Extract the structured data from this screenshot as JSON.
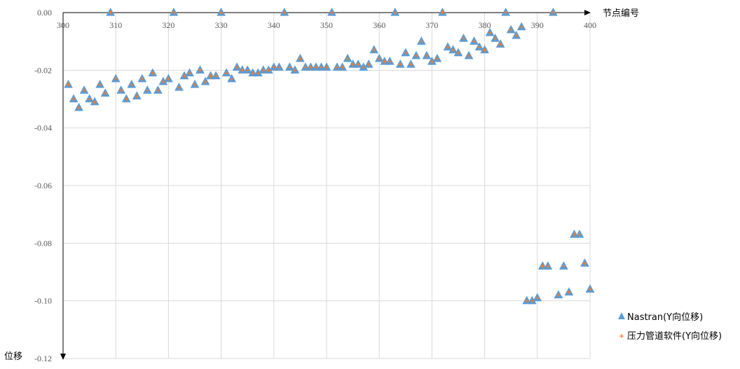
{
  "chart_data": {
    "type": "scatter",
    "xlabel": "节点编号",
    "ylabel": "位移",
    "xlim": [
      300,
      400
    ],
    "ylim": [
      -0.12,
      0
    ],
    "xticks": [
      300,
      310,
      320,
      330,
      340,
      350,
      360,
      370,
      380,
      390,
      400
    ],
    "yticks": [
      0,
      -0.02,
      -0.04,
      -0.06,
      -0.08,
      -0.1,
      -0.12
    ],
    "ytick_labels": [
      "0.00",
      "-0.02",
      "-0.04",
      "-0.06",
      "-0.08",
      "-0.10",
      "-0.12"
    ],
    "grid": true,
    "legend_position": "bottom-right",
    "series": [
      {
        "name": "Nastran(Y向位移)",
        "marker": "triangle",
        "color": "#5b9bd5",
        "points": [
          [
            301,
            -0.025
          ],
          [
            302,
            -0.03
          ],
          [
            303,
            -0.033
          ],
          [
            304,
            -0.027
          ],
          [
            305,
            -0.03
          ],
          [
            306,
            -0.031
          ],
          [
            307,
            -0.025
          ],
          [
            308,
            -0.028
          ],
          [
            309,
            0
          ],
          [
            310,
            -0.023
          ],
          [
            311,
            -0.027
          ],
          [
            312,
            -0.03
          ],
          [
            313,
            -0.025
          ],
          [
            314,
            -0.029
          ],
          [
            315,
            -0.023
          ],
          [
            316,
            -0.027
          ],
          [
            317,
            -0.021
          ],
          [
            318,
            -0.027
          ],
          [
            319,
            -0.024
          ],
          [
            320,
            -0.023
          ],
          [
            321,
            0
          ],
          [
            322,
            -0.026
          ],
          [
            323,
            -0.022
          ],
          [
            324,
            -0.021
          ],
          [
            325,
            -0.025
          ],
          [
            326,
            -0.02
          ],
          [
            327,
            -0.024
          ],
          [
            328,
            -0.022
          ],
          [
            329,
            -0.022
          ],
          [
            330,
            0
          ],
          [
            331,
            -0.021
          ],
          [
            332,
            -0.023
          ],
          [
            333,
            -0.019
          ],
          [
            334,
            -0.02
          ],
          [
            335,
            -0.02
          ],
          [
            336,
            -0.021
          ],
          [
            337,
            -0.021
          ],
          [
            338,
            -0.02
          ],
          [
            339,
            -0.02
          ],
          [
            340,
            -0.019
          ],
          [
            341,
            -0.019
          ],
          [
            342,
            0
          ],
          [
            343,
            -0.019
          ],
          [
            344,
            -0.02
          ],
          [
            345,
            -0.016
          ],
          [
            346,
            -0.019
          ],
          [
            347,
            -0.019
          ],
          [
            348,
            -0.019
          ],
          [
            349,
            -0.019
          ],
          [
            350,
            -0.019
          ],
          [
            351,
            0
          ],
          [
            352,
            -0.019
          ],
          [
            353,
            -0.019
          ],
          [
            354,
            -0.016
          ],
          [
            355,
            -0.018
          ],
          [
            356,
            -0.018
          ],
          [
            357,
            -0.019
          ],
          [
            358,
            -0.018
          ],
          [
            359,
            -0.013
          ],
          [
            360,
            -0.016
          ],
          [
            361,
            -0.017
          ],
          [
            362,
            -0.017
          ],
          [
            363,
            0
          ],
          [
            364,
            -0.018
          ],
          [
            365,
            -0.014
          ],
          [
            366,
            -0.018
          ],
          [
            367,
            -0.015
          ],
          [
            368,
            -0.01
          ],
          [
            369,
            -0.015
          ],
          [
            370,
            -0.017
          ],
          [
            371,
            -0.016
          ],
          [
            372,
            0
          ],
          [
            373,
            -0.012
          ],
          [
            374,
            -0.013
          ],
          [
            375,
            -0.014
          ],
          [
            376,
            -0.009
          ],
          [
            377,
            -0.015
          ],
          [
            378,
            -0.01
          ],
          [
            379,
            -0.012
          ],
          [
            380,
            -0.013
          ],
          [
            381,
            -0.007
          ],
          [
            382,
            -0.009
          ],
          [
            383,
            -0.011
          ],
          [
            384,
            0
          ],
          [
            385,
            -0.006
          ],
          [
            386,
            -0.008
          ],
          [
            387,
            -0.005
          ],
          [
            388,
            -0.1
          ],
          [
            389,
            -0.1
          ],
          [
            390,
            -0.099
          ],
          [
            391,
            -0.088
          ],
          [
            392,
            -0.088
          ],
          [
            393,
            0
          ],
          [
            394,
            -0.098
          ],
          [
            395,
            -0.088
          ],
          [
            396,
            -0.097
          ],
          [
            397,
            -0.077
          ],
          [
            398,
            -0.077
          ],
          [
            399,
            -0.087
          ],
          [
            400,
            -0.096
          ]
        ]
      },
      {
        "name": "压力管道软件(Y向位移)",
        "marker": "plus",
        "color": "#ed7d31",
        "points": [
          [
            301,
            -0.025
          ],
          [
            302,
            -0.03
          ],
          [
            303,
            -0.033
          ],
          [
            304,
            -0.027
          ],
          [
            305,
            -0.03
          ],
          [
            306,
            -0.031
          ],
          [
            307,
            -0.025
          ],
          [
            308,
            -0.028
          ],
          [
            309,
            0
          ],
          [
            310,
            -0.023
          ],
          [
            311,
            -0.027
          ],
          [
            312,
            -0.03
          ],
          [
            313,
            -0.025
          ],
          [
            314,
            -0.029
          ],
          [
            315,
            -0.023
          ],
          [
            316,
            -0.027
          ],
          [
            317,
            -0.021
          ],
          [
            318,
            -0.027
          ],
          [
            319,
            -0.024
          ],
          [
            320,
            -0.023
          ],
          [
            321,
            0
          ],
          [
            322,
            -0.026
          ],
          [
            323,
            -0.022
          ],
          [
            324,
            -0.021
          ],
          [
            325,
            -0.025
          ],
          [
            326,
            -0.02
          ],
          [
            327,
            -0.024
          ],
          [
            328,
            -0.022
          ],
          [
            329,
            -0.022
          ],
          [
            330,
            0
          ],
          [
            331,
            -0.021
          ],
          [
            332,
            -0.023
          ],
          [
            333,
            -0.019
          ],
          [
            334,
            -0.02
          ],
          [
            335,
            -0.02
          ],
          [
            336,
            -0.021
          ],
          [
            337,
            -0.021
          ],
          [
            338,
            -0.02
          ],
          [
            339,
            -0.02
          ],
          [
            340,
            -0.019
          ],
          [
            341,
            -0.019
          ],
          [
            342,
            0
          ],
          [
            343,
            -0.019
          ],
          [
            344,
            -0.02
          ],
          [
            345,
            -0.016
          ],
          [
            346,
            -0.019
          ],
          [
            347,
            -0.019
          ],
          [
            348,
            -0.019
          ],
          [
            349,
            -0.019
          ],
          [
            350,
            -0.019
          ],
          [
            351,
            0
          ],
          [
            352,
            -0.019
          ],
          [
            353,
            -0.019
          ],
          [
            354,
            -0.016
          ],
          [
            355,
            -0.018
          ],
          [
            356,
            -0.018
          ],
          [
            357,
            -0.019
          ],
          [
            358,
            -0.018
          ],
          [
            359,
            -0.013
          ],
          [
            360,
            -0.016
          ],
          [
            361,
            -0.017
          ],
          [
            362,
            -0.017
          ],
          [
            363,
            0
          ],
          [
            364,
            -0.018
          ],
          [
            365,
            -0.014
          ],
          [
            366,
            -0.018
          ],
          [
            367,
            -0.015
          ],
          [
            368,
            -0.01
          ],
          [
            369,
            -0.015
          ],
          [
            370,
            -0.017
          ],
          [
            371,
            -0.016
          ],
          [
            372,
            0
          ],
          [
            373,
            -0.012
          ],
          [
            374,
            -0.013
          ],
          [
            375,
            -0.014
          ],
          [
            376,
            -0.009
          ],
          [
            377,
            -0.015
          ],
          [
            378,
            -0.01
          ],
          [
            379,
            -0.012
          ],
          [
            380,
            -0.013
          ],
          [
            381,
            -0.007
          ],
          [
            382,
            -0.009
          ],
          [
            383,
            -0.011
          ],
          [
            384,
            0
          ],
          [
            385,
            -0.006
          ],
          [
            386,
            -0.008
          ],
          [
            387,
            -0.005
          ],
          [
            388,
            -0.1
          ],
          [
            389,
            -0.1
          ],
          [
            390,
            -0.099
          ],
          [
            391,
            -0.088
          ],
          [
            392,
            -0.088
          ],
          [
            393,
            0
          ],
          [
            394,
            -0.098
          ],
          [
            395,
            -0.088
          ],
          [
            396,
            -0.097
          ],
          [
            397,
            -0.077
          ],
          [
            398,
            -0.077
          ],
          [
            399,
            -0.087
          ],
          [
            400,
            -0.096
          ]
        ]
      }
    ]
  }
}
